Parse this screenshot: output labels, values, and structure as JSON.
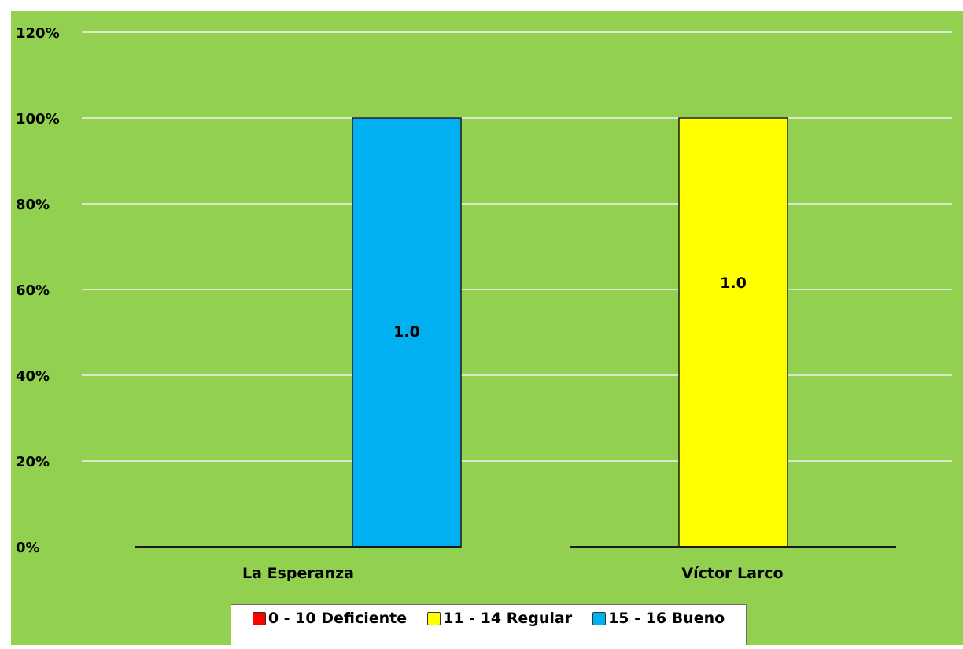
{
  "chart_data": {
    "type": "bar",
    "categories": [
      "La Esperanza",
      "Víctor Larco"
    ],
    "series": [
      {
        "name": "0 - 10 Deficiente",
        "color": "#ff0000",
        "values": [
          0,
          0
        ]
      },
      {
        "name": "11 - 14 Regular",
        "color": "#ffff00",
        "values": [
          0,
          1.0
        ]
      },
      {
        "name": "15 - 16 Bueno",
        "color": "#00b0f0",
        "values": [
          1.0,
          0
        ]
      }
    ],
    "data_labels": [
      "1.0",
      "1.0"
    ],
    "y_ticks": [
      "0%",
      "20%",
      "40%",
      "60%",
      "80%",
      "100%",
      "120%"
    ],
    "ylim": [
      0,
      1.2
    ],
    "grid": true,
    "legend_position": "bottom",
    "plot_background": "#92d050"
  }
}
